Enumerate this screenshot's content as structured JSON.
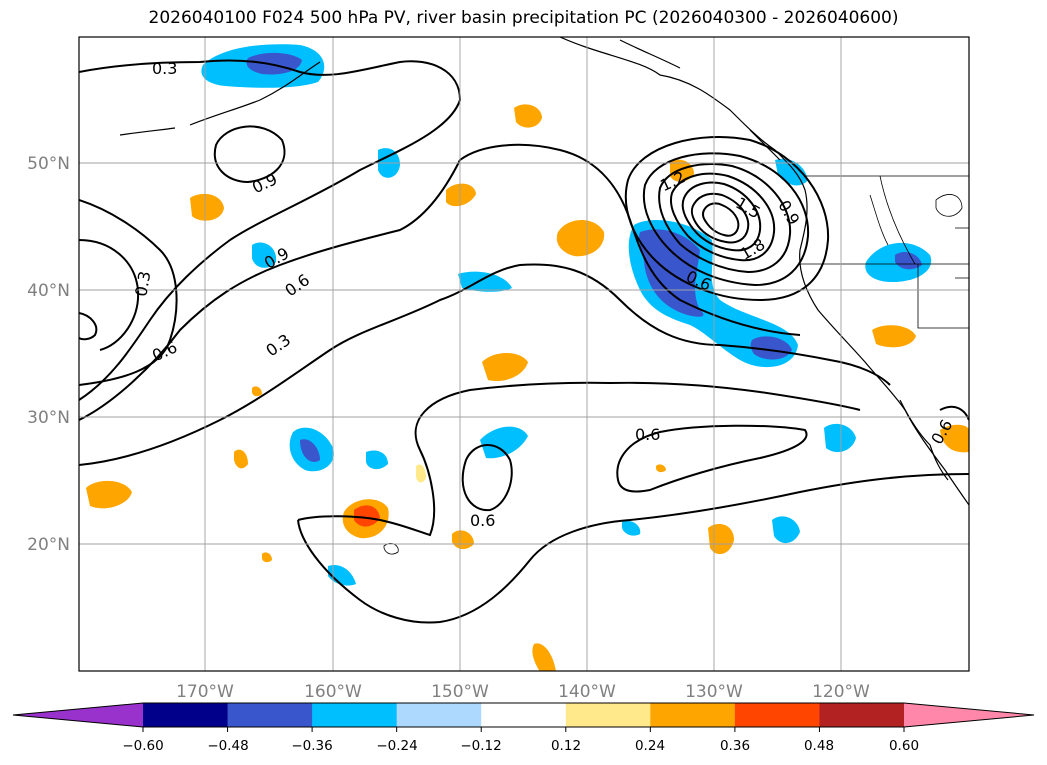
{
  "title": "2026040100 F024 500 hPa PV, river basin precipitation PC (2026040300 - 2026040600)",
  "map": {
    "lon_labels": [
      "170°W",
      "160°W",
      "150°W",
      "140°W",
      "130°W",
      "120°W"
    ],
    "lat_labels": [
      "50°N",
      "40°N",
      "30°N",
      "20°N"
    ],
    "contour_labels": [
      "0.3",
      "0.9",
      "0.9",
      "0.3",
      "0.6",
      "0.3",
      "0.6",
      "1.2",
      "1.5",
      "0.9",
      "1.8",
      "0.6",
      "0.6",
      "0.6",
      "0.6"
    ]
  },
  "colorbar": {
    "tick_labels": [
      "−0.60",
      "−0.48",
      "−0.36",
      "−0.24",
      "−0.12",
      "0.12",
      "0.24",
      "0.36",
      "0.48",
      "0.60"
    ],
    "colors": [
      "#9932cc",
      "#00008b",
      "#3a56cc",
      "#00bfff",
      "#add8ff",
      "#ffffff",
      "#ffe98a",
      "#ffa500",
      "#ff4500",
      "#b22222",
      "#ff88aa"
    ]
  }
}
